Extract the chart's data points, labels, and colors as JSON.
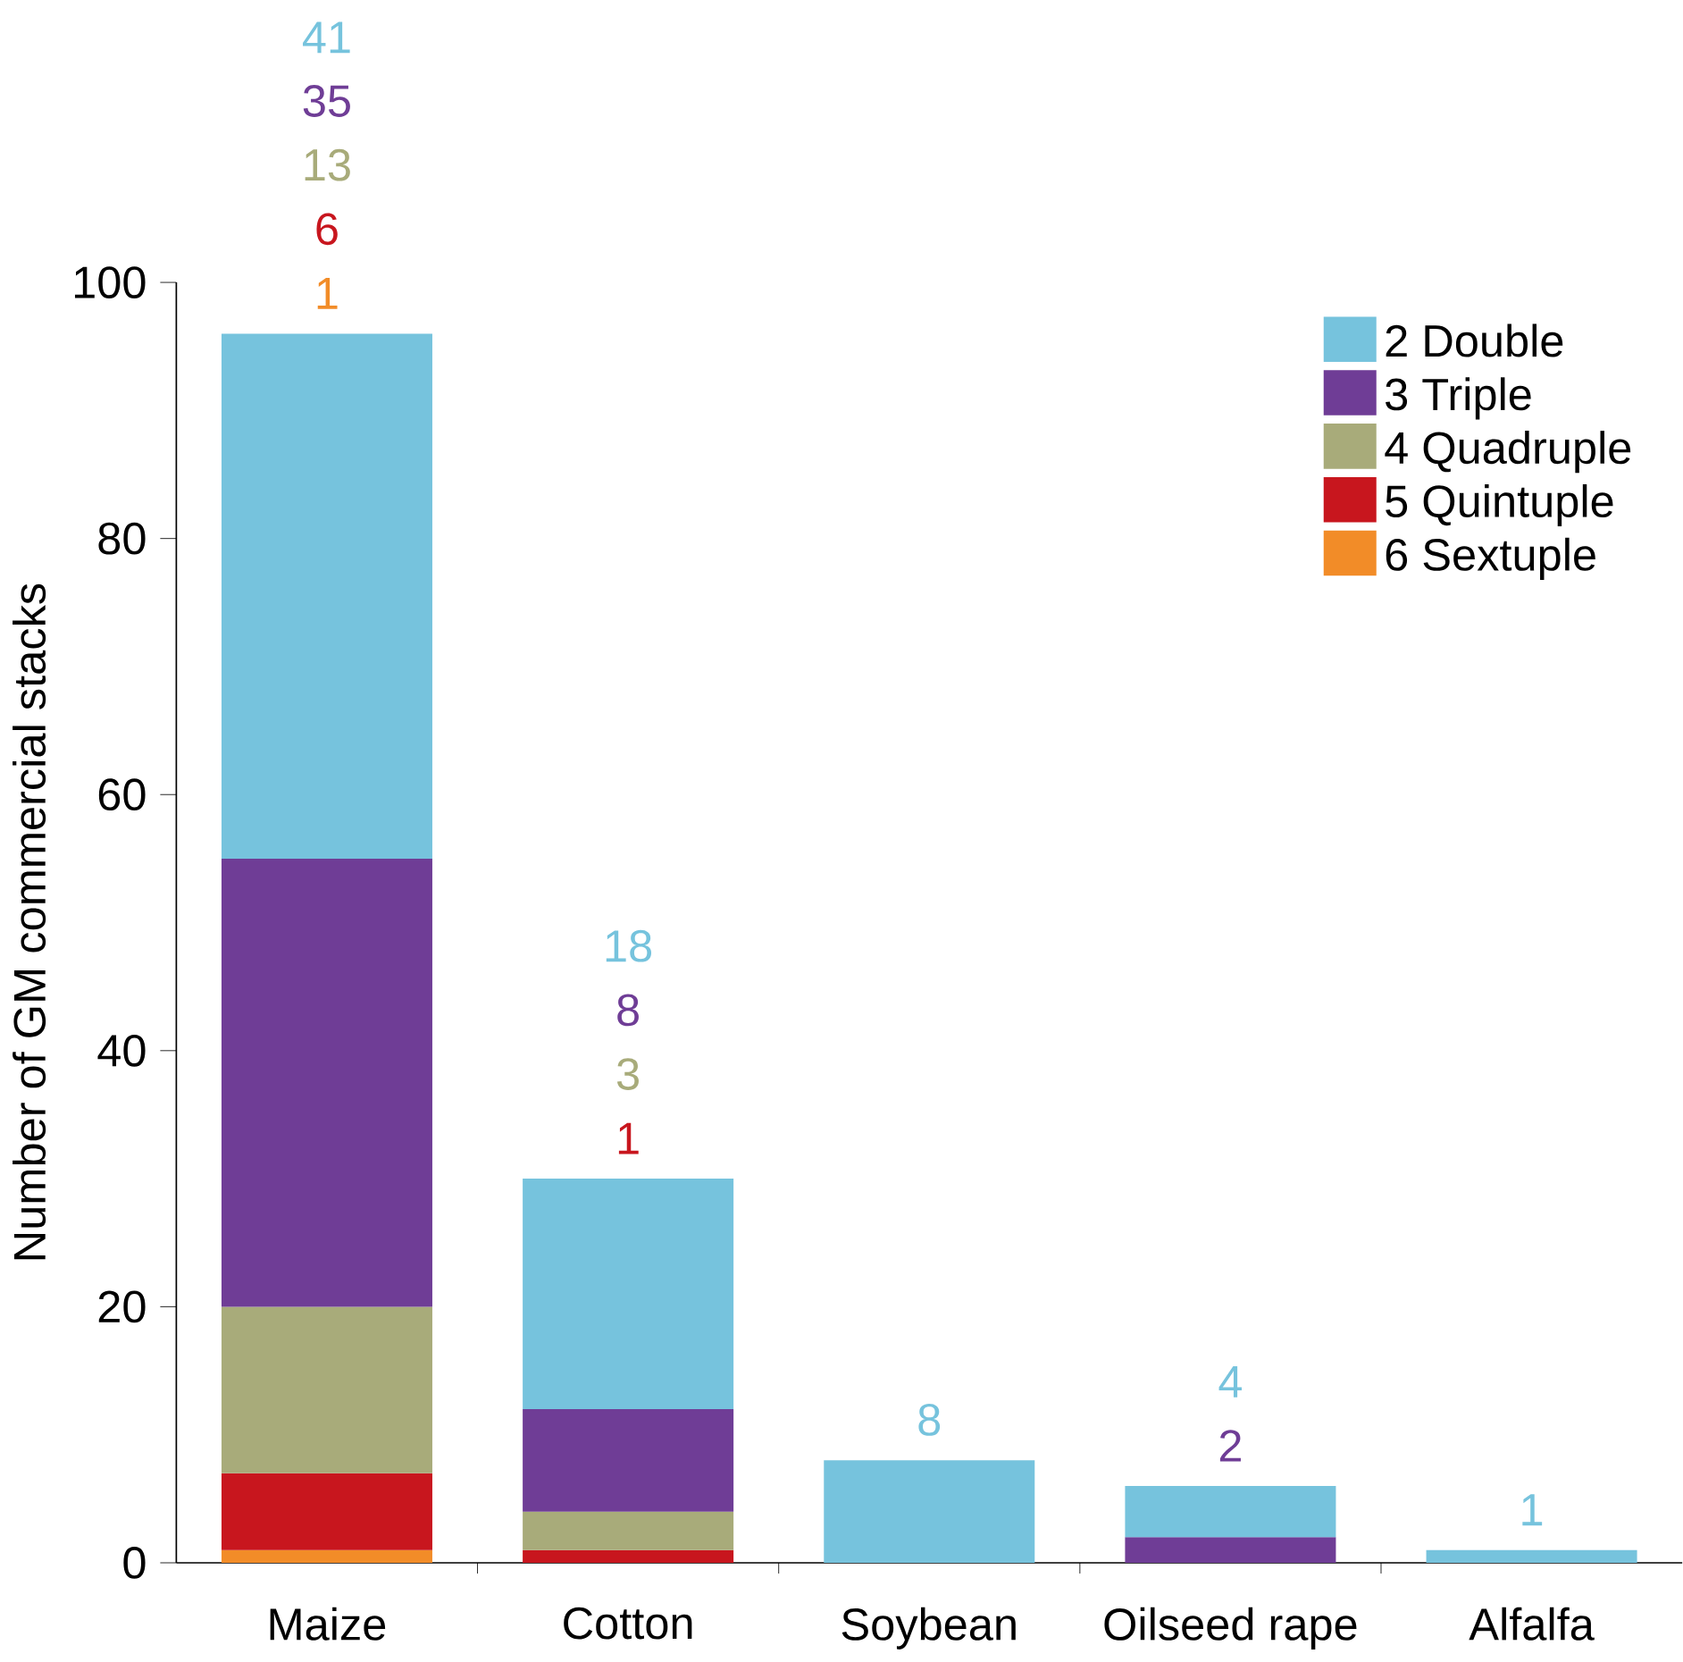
{
  "chart_data": {
    "type": "bar",
    "stacked": true,
    "ylabel": "Number of GM commercial stacks",
    "categories": [
      "Maize",
      "Cotton",
      "Soybean",
      "Oilseed rape",
      "Alfalfa"
    ],
    "series": [
      {
        "name": "6 Sextuple",
        "color": "#f28c28",
        "values": [
          1,
          null,
          null,
          null,
          null
        ]
      },
      {
        "name": "5 Quintuple",
        "color": "#c8161e",
        "values": [
          6,
          1,
          null,
          null,
          null
        ]
      },
      {
        "name": "4 Quadruple",
        "color": "#a8ab7a",
        "values": [
          13,
          3,
          null,
          null,
          null
        ]
      },
      {
        "name": "3 Triple",
        "color": "#6f3d96",
        "values": [
          35,
          8,
          null,
          2,
          null
        ]
      },
      {
        "name": "2 Double",
        "color": "#76c3dd",
        "values": [
          41,
          18,
          8,
          4,
          1
        ]
      }
    ],
    "ylim": [
      0,
      100
    ],
    "yticks": [
      0,
      20,
      40,
      60,
      80,
      100
    ],
    "legend": "top right",
    "annotations": [
      "1",
      "6",
      "13",
      "35",
      "41",
      "1",
      "3",
      "8",
      "18",
      "8",
      "2",
      "4",
      "1"
    ]
  }
}
